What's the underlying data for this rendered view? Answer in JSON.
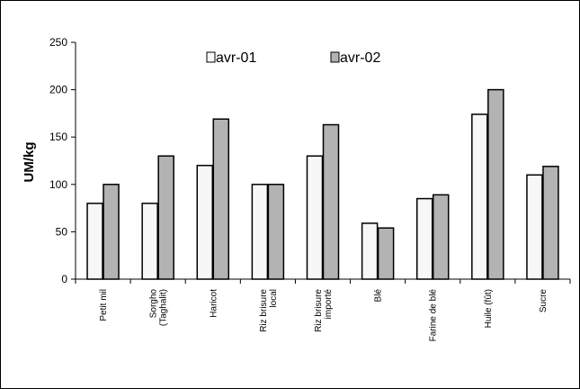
{
  "chart_data": {
    "type": "bar",
    "title": "",
    "xlabel": "",
    "ylabel": "UM/kg",
    "ylim": [
      0,
      250
    ],
    "yticks": [
      0,
      50,
      100,
      150,
      200,
      250
    ],
    "grid": false,
    "legend_position": "top-center",
    "categories": [
      [
        "Petit mil"
      ],
      [
        "Sorgho",
        "(Taghalit)"
      ],
      [
        "Haricot"
      ],
      [
        "Riz brisure",
        "local"
      ],
      [
        "Riz brisure",
        "importé"
      ],
      [
        "Blé"
      ],
      [
        "Farine de blé"
      ],
      [
        "Huile (fût)"
      ],
      [
        "Sucre"
      ]
    ],
    "series": [
      {
        "name": "avr-01",
        "color": "#f7f7f7",
        "values": [
          80,
          80,
          120,
          100,
          130,
          59,
          85,
          174,
          110
        ]
      },
      {
        "name": "avr-02",
        "color": "#b3b3b3",
        "values": [
          100,
          130,
          169,
          100,
          163,
          54,
          89,
          200,
          119
        ]
      }
    ]
  }
}
